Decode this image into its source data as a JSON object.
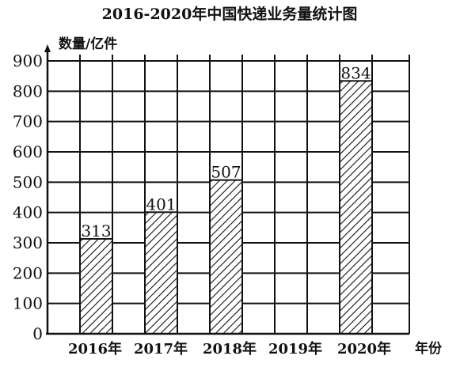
{
  "chart_data": {
    "type": "bar",
    "title": "2016-2020年中国快递业务量统计图",
    "ylabel": "数量/亿件",
    "xlabel": "年份",
    "categories": [
      "2016年",
      "2017年",
      "2018年",
      "2019年",
      "2020年"
    ],
    "values": [
      313,
      401,
      507,
      null,
      834
    ],
    "data_labels": [
      "313",
      "401",
      "507",
      "",
      "834"
    ],
    "ylim": [
      0,
      900
    ],
    "yticks": [
      0,
      100,
      200,
      300,
      400,
      500,
      600,
      700,
      800,
      900
    ],
    "ytick_labels": [
      "0",
      "100",
      "200",
      "300",
      "400",
      "500",
      "600",
      "700",
      "800",
      "900"
    ],
    "grid": true,
    "bar_pattern": "diagonal-hatch"
  }
}
